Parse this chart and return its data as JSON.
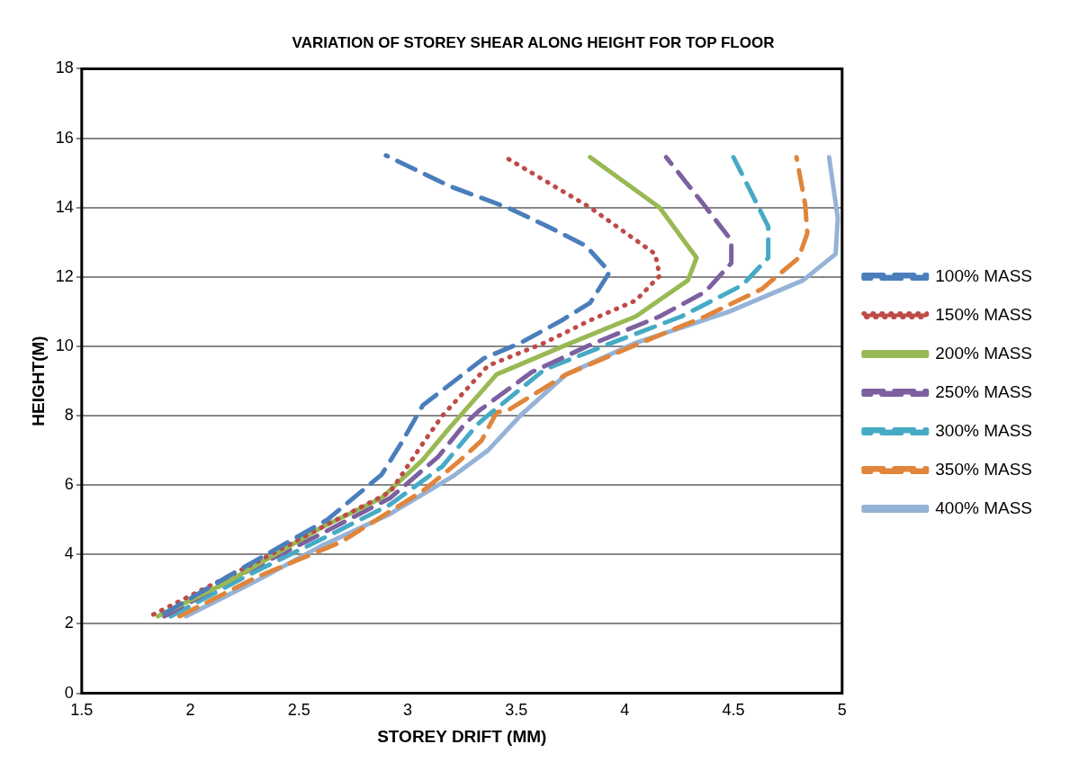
{
  "chart_data": {
    "type": "line",
    "title": "VARIATION OF STOREY SHEAR ALONG HEIGHT FOR TOP FLOOR",
    "xlabel": "STOREY DRIFT (MM)",
    "ylabel": "HEIGHT(M)",
    "xlim": [
      1.5,
      5
    ],
    "xticks": [
      1.5,
      2,
      2.5,
      3,
      3.5,
      4,
      4.5,
      5
    ],
    "ylim": [
      0,
      18
    ],
    "yticks": [
      0,
      2,
      4,
      6,
      8,
      10,
      12,
      14,
      16,
      18
    ],
    "grid": "y",
    "legend": "right",
    "marker": "none",
    "series": [
      {
        "name": "100% MASS",
        "color": "#4a7ebb",
        "line_style": "dashed",
        "x": [
          1.88,
          2.21,
          2.63,
          2.88,
          2.97,
          3.07,
          3.35,
          3.52,
          3.71,
          3.84,
          3.93,
          3.82,
          3.63,
          3.46,
          3.2,
          2.9
        ],
        "values": [
          2.3,
          3.5,
          5,
          6.3,
          7.2,
          8.3,
          9.65,
          10.1,
          10.75,
          11.25,
          12.14,
          12.9,
          13.5,
          14,
          14.6,
          15.5
        ]
      },
      {
        "name": "150% MASS",
        "color": "#be4b48",
        "line_style": "dotted",
        "x": [
          1.83,
          2.31,
          2.61,
          2.92,
          3.07,
          3.16,
          3.37,
          3.63,
          3.84,
          4.05,
          4.16,
          4.14,
          3.84,
          3.45
        ],
        "values": [
          2.27,
          3.8,
          4.8,
          5.8,
          7.2,
          8,
          9.44,
          10.1,
          10.75,
          11.32,
          12.03,
          12.66,
          14,
          15.45
        ]
      },
      {
        "name": "200% MASS",
        "color": "#98b954",
        "line_style": "solid",
        "x": [
          1.85,
          2.16,
          2.61,
          2.88,
          3.07,
          3.19,
          3.41,
          3.73,
          4.05,
          4.29,
          4.33,
          4.16,
          3.84
        ],
        "values": [
          2.22,
          3.17,
          4.8,
          5.63,
          6.73,
          7.63,
          9.19,
          10.04,
          10.86,
          11.9,
          12.55,
          14,
          15.45
        ]
      },
      {
        "name": "250% MASS",
        "color": "#7d60a0",
        "line_style": "dashed",
        "x": [
          1.88,
          2.24,
          2.61,
          2.92,
          3.14,
          3.26,
          3.33,
          3.57,
          3.84,
          4.16,
          4.37,
          4.49,
          4.49,
          4.37,
          4.19
        ],
        "values": [
          2.22,
          3.45,
          4.62,
          5.63,
          6.81,
          7.74,
          8.15,
          9.25,
          10.04,
          10.86,
          11.57,
          12.4,
          13.05,
          14.03,
          15.45
        ]
      },
      {
        "name": "300% MASS",
        "color": "#46aac5",
        "line_style": "dashed",
        "x": [
          1.91,
          2.28,
          2.61,
          2.92,
          3.16,
          3.32,
          3.37,
          3.63,
          3.94,
          4.26,
          4.54,
          4.66,
          4.66,
          4.5
        ],
        "values": [
          2.22,
          3.45,
          4.46,
          5.44,
          6.54,
          7.74,
          8.01,
          9.33,
          10.1,
          10.86,
          11.76,
          12.55,
          13.45,
          15.45
        ]
      },
      {
        "name": "350% MASS",
        "color": "#e0853a",
        "line_style": "dashed",
        "x": [
          1.95,
          2.31,
          2.69,
          3.07,
          3.23,
          3.34,
          3.41,
          3.46,
          3.73,
          4.05,
          4.37,
          4.63,
          4.8,
          4.84,
          4.83,
          4.79
        ],
        "values": [
          2.22,
          3.36,
          4.35,
          5.83,
          6.65,
          7.28,
          8.1,
          8.15,
          9.19,
          10.04,
          10.86,
          11.65,
          12.55,
          13.26,
          14.09,
          15.45
        ]
      },
      {
        "name": "400% MASS",
        "color": "#95b3d7",
        "line_style": "solid",
        "x": [
          1.98,
          2.31,
          2.61,
          2.92,
          3.21,
          3.37,
          3.52,
          3.73,
          4.05,
          4.48,
          4.82,
          4.97,
          4.98,
          4.94
        ],
        "values": [
          2.22,
          3.26,
          4.27,
          5.17,
          6.26,
          7,
          8.01,
          9.19,
          10.1,
          11,
          11.9,
          12.66,
          13.7,
          15.45
        ]
      }
    ]
  }
}
